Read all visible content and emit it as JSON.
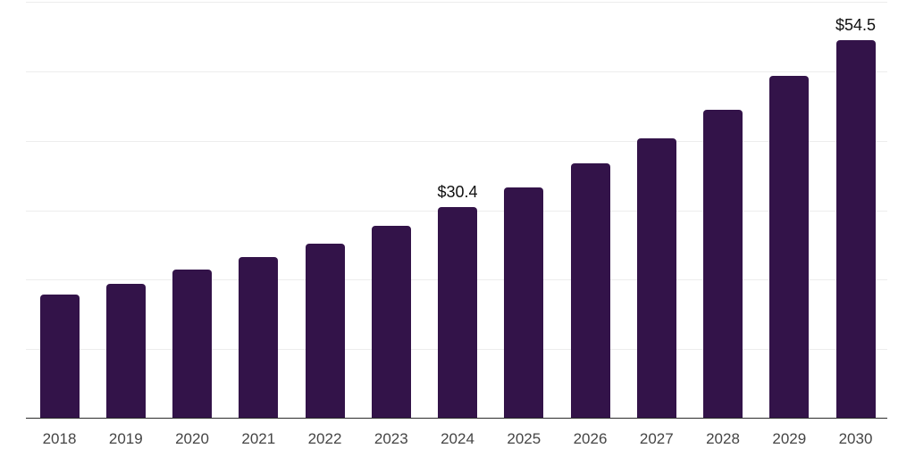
{
  "chart_data": {
    "type": "bar",
    "title": "",
    "xlabel": "",
    "ylabel": "",
    "categories": [
      "2018",
      "2019",
      "2020",
      "2021",
      "2022",
      "2023",
      "2024",
      "2025",
      "2026",
      "2027",
      "2028",
      "2029",
      "2030"
    ],
    "values": [
      17.9,
      19.4,
      21.4,
      23.2,
      25.2,
      27.7,
      30.4,
      33.3,
      36.7,
      40.3,
      44.5,
      49.4,
      54.5
    ],
    "data_labels": [
      {
        "category": "2024",
        "text": "$30.4"
      },
      {
        "category": "2030",
        "text": "$54.5"
      }
    ],
    "ylim": [
      0,
      60
    ],
    "gridline_values": [
      0,
      10,
      20,
      30,
      40,
      50,
      60
    ],
    "grid": true,
    "legend": "none",
    "colors": {
      "bar": "#331349",
      "gridline": "#ededed",
      "axis_line": "#2b2b2b",
      "tick_label": "#454545",
      "data_label": "#101010",
      "background": "#ffffff"
    }
  }
}
